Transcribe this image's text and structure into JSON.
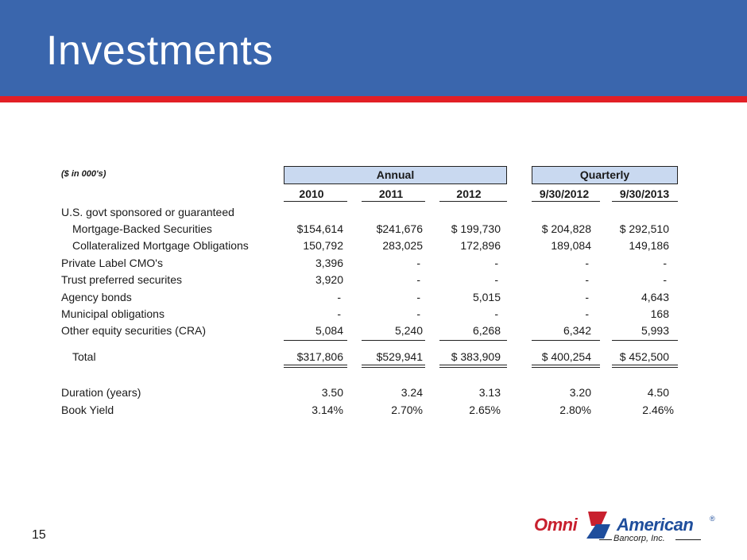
{
  "slide": {
    "title": "Investments",
    "page_number": "15"
  },
  "table": {
    "units_note": "($ in 000's)",
    "group_annual": "Annual",
    "group_quarterly": "Quarterly",
    "columns": [
      "2010",
      "2011",
      "2012",
      "9/30/2012",
      "9/30/2013"
    ],
    "section_header": "U.S. govt sponsored or guaranteed",
    "rows": [
      {
        "label": "Mortgage-Backed Securities",
        "values": [
          "$154,614",
          "$241,676",
          "$ 199,730",
          "$ 204,828",
          "$ 292,510"
        ]
      },
      {
        "label": "Collateralized Mortgage Obligations",
        "values": [
          "150,792",
          "283,025",
          "172,896",
          "189,084",
          "149,186"
        ]
      },
      {
        "label": "Private Label CMO's",
        "values": [
          "3,396",
          "-",
          "-",
          "-",
          "-"
        ]
      },
      {
        "label": "Trust preferred securites",
        "values": [
          "3,920",
          "-",
          "-",
          "-",
          "-"
        ]
      },
      {
        "label": "Agency bonds",
        "values": [
          "-",
          "-",
          "5,015",
          "-",
          "4,643"
        ]
      },
      {
        "label": "Municipal obligations",
        "values": [
          "-",
          "-",
          "-",
          "-",
          "168"
        ]
      },
      {
        "label": "Other equity securities (CRA)",
        "values": [
          "5,084",
          "5,240",
          "6,268",
          "6,342",
          "5,993"
        ]
      }
    ],
    "total": {
      "label": "Total",
      "values": [
        "$317,806",
        "$529,941",
        "$ 383,909",
        "$ 400,254",
        "$ 452,500"
      ]
    },
    "duration": {
      "label": "Duration (years)",
      "values": [
        "3.50",
        "3.24",
        "3.13",
        "3.20",
        "4.50"
      ]
    },
    "book_yield": {
      "label": "Book Yield",
      "values": [
        "3.14%",
        "2.70%",
        "2.65%",
        "2.80%",
        "2.46%"
      ]
    }
  },
  "logo": {
    "omni": "Omni",
    "american": "American",
    "registered": "®",
    "bancorp": "Bancorp, Inc."
  },
  "colors": {
    "header_blue": "#3a66ad",
    "stripe_red": "#e21f26",
    "group_fill": "#c9d9f0"
  }
}
